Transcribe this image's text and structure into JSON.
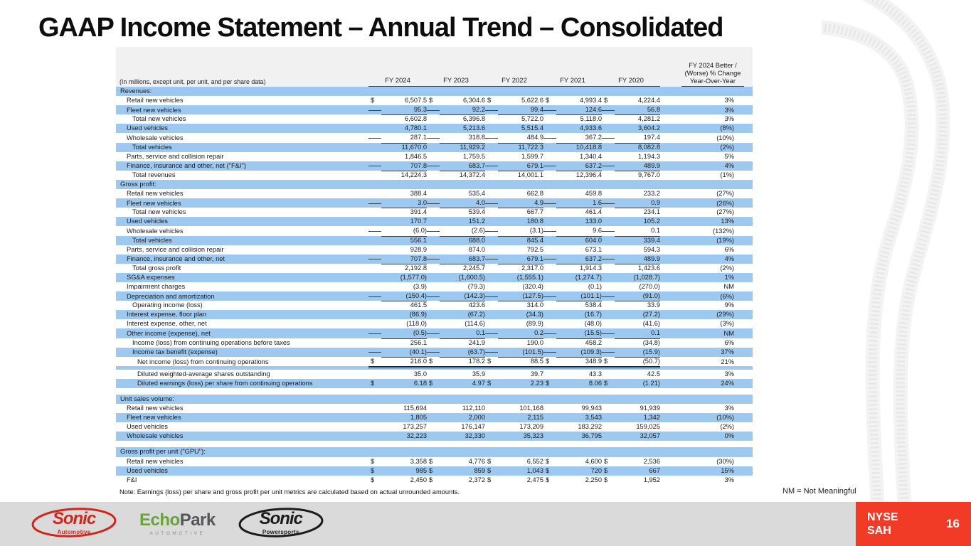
{
  "title": "GAAP Income Statement – Annual Trend – Consolidated",
  "colors": {
    "row_shade_blue": "#9DC9F1",
    "accent_red": "#F23B27",
    "footer_gray": "#DADADA"
  },
  "table": {
    "currency_symbol": "$",
    "measure_note": "(In millions, except unit, per unit, and per share data)",
    "years": [
      "FY 2024",
      "FY 2023",
      "FY 2022",
      "FY 2021",
      "FY 2020"
    ],
    "change_lines": [
      "FY 2024 Better /",
      "(Worse) % Change",
      "Year-Over-Year"
    ],
    "rows": [
      {
        "label": "Revenues:",
        "section": true,
        "shade": true
      },
      {
        "label": "Retail new vehicles",
        "indent": 1,
        "shade": false,
        "dollar": true,
        "values": [
          "6,507.5",
          "6,304.6",
          "5,622.6",
          "4,993.4",
          "4,224.4"
        ],
        "pct": "3%"
      },
      {
        "label": "Fleet new vehicles",
        "indent": 1,
        "shade": true,
        "values": [
          "95.3",
          "92.2",
          "99.4",
          "124.6",
          "56.8"
        ],
        "pct": "3%",
        "rule": "single"
      },
      {
        "label": "Total new vehicles",
        "indent": 2,
        "shade": false,
        "values": [
          "6,602.8",
          "6,396.8",
          "5,722.0",
          "5,118.0",
          "4,281.2"
        ],
        "pct": "3%"
      },
      {
        "label": "Used vehicles",
        "indent": 1,
        "shade": true,
        "values": [
          "4,780.1",
          "5,213.6",
          "5,515.4",
          "4,933.6",
          "3,604.2"
        ],
        "pct": "(8%)"
      },
      {
        "label": "Wholesale vehicles",
        "indent": 1,
        "shade": false,
        "values": [
          "287.1",
          "318.8",
          "484.9",
          "367.2",
          "197.4"
        ],
        "pct": "(10%)",
        "rule": "single"
      },
      {
        "label": "Total vehicles",
        "indent": 2,
        "shade": true,
        "values": [
          "11,670.0",
          "11,929.2",
          "11,722.3",
          "10,418.8",
          "8,082.8"
        ],
        "pct": "(2%)"
      },
      {
        "label": "Parts, service and collision repair",
        "indent": 1,
        "shade": false,
        "values": [
          "1,846.5",
          "1,759.5",
          "1,599.7",
          "1,340.4",
          "1,194.3"
        ],
        "pct": "5%"
      },
      {
        "label": "Finance, insurance and other, net (\"F&I\")",
        "indent": 1,
        "shade": true,
        "values": [
          "707.8",
          "683.7",
          "679.1",
          "637.2",
          "489.9"
        ],
        "pct": "4%",
        "rule": "single"
      },
      {
        "label": "Total revenues",
        "indent": 2,
        "shade": false,
        "values": [
          "14,224.3",
          "14,372.4",
          "14,001.1",
          "12,396.4",
          "9,767.0"
        ],
        "pct": "(1%)"
      },
      {
        "label": "Gross profit:",
        "section": true,
        "shade": true
      },
      {
        "label": "Retail new vehicles",
        "indent": 1,
        "shade": false,
        "values": [
          "388.4",
          "535.4",
          "662.8",
          "459.8",
          "233.2"
        ],
        "pct": "(27%)"
      },
      {
        "label": "Fleet new vehicles",
        "indent": 1,
        "shade": true,
        "values": [
          "3.0",
          "4.0",
          "4.9",
          "1.6",
          "0.9"
        ],
        "pct": "(26%)",
        "rule": "single"
      },
      {
        "label": "Total new vehicles",
        "indent": 2,
        "shade": false,
        "values": [
          "391.4",
          "539.4",
          "667.7",
          "461.4",
          "234.1"
        ],
        "pct": "(27%)"
      },
      {
        "label": "Used vehicles",
        "indent": 1,
        "shade": true,
        "values": [
          "170.7",
          "151.2",
          "180.8",
          "133.0",
          "105.2"
        ],
        "pct": "13%"
      },
      {
        "label": "Wholesale vehicles",
        "indent": 1,
        "shade": false,
        "values": [
          "(6.0)",
          "(2.6)",
          "(3.1)",
          "9.6",
          "0.1"
        ],
        "pct": "(132%)",
        "rule": "single"
      },
      {
        "label": "Total vehicles",
        "indent": 2,
        "shade": true,
        "values": [
          "556.1",
          "688.0",
          "845.4",
          "604.0",
          "339.4"
        ],
        "pct": "(19%)"
      },
      {
        "label": "Parts, service and collision repair",
        "indent": 1,
        "shade": false,
        "values": [
          "928.9",
          "874.0",
          "792.5",
          "673.1",
          "594.3"
        ],
        "pct": "6%"
      },
      {
        "label": "Finance, insurance and other, net",
        "indent": 1,
        "shade": true,
        "values": [
          "707.8",
          "683.7",
          "679.1",
          "637.2",
          "489.9"
        ],
        "pct": "4%",
        "rule": "single"
      },
      {
        "label": "Total gross profit",
        "indent": 2,
        "shade": false,
        "values": [
          "2,192.8",
          "2,245.7",
          "2,317.0",
          "1,914.3",
          "1,423.6"
        ],
        "pct": "(2%)"
      },
      {
        "label": "SG&A expenses",
        "indent": 1,
        "shade": true,
        "values": [
          "(1,577.0)",
          "(1,600.5)",
          "(1,555.1)",
          "(1,274.7)",
          "(1,028.7)"
        ],
        "pct": "1%"
      },
      {
        "label": "Impairment charges",
        "indent": 1,
        "shade": false,
        "values": [
          "(3.9)",
          "(79.3)",
          "(320.4)",
          "(0.1)",
          "(270.0)"
        ],
        "pct": "NM"
      },
      {
        "label": "Depreciation and amortization",
        "indent": 1,
        "shade": true,
        "values": [
          "(150.4)",
          "(142.3)",
          "(127.5)",
          "(101.1)",
          "(91.0)"
        ],
        "pct": "(6%)",
        "rule": "single"
      },
      {
        "label": "Operating income (loss)",
        "indent": 2,
        "shade": false,
        "values": [
          "461.5",
          "423.6",
          "314.0",
          "538.4",
          "33.9"
        ],
        "pct": "9%"
      },
      {
        "label": "Interest expense, floor plan",
        "indent": 1,
        "shade": true,
        "values": [
          "(86.9)",
          "(67.2)",
          "(34.3)",
          "(16.7)",
          "(27.2)"
        ],
        "pct": "(29%)"
      },
      {
        "label": "Interest expense, other, net",
        "indent": 1,
        "shade": false,
        "values": [
          "(118.0)",
          "(114.6)",
          "(89.9)",
          "(48.0)",
          "(41.6)"
        ],
        "pct": "(3%)"
      },
      {
        "label": "Other income (expense), net",
        "indent": 1,
        "shade": true,
        "values": [
          "(0.5)",
          "0.1",
          "0.2",
          "(15.5)",
          "0.1"
        ],
        "pct": "NM",
        "rule": "single"
      },
      {
        "label": "Income (loss) from continuing operations before taxes",
        "indent": 2,
        "shade": false,
        "values": [
          "256.1",
          "241.9",
          "190.0",
          "458.2",
          "(34.8)"
        ],
        "pct": "6%"
      },
      {
        "label": "Income tax benefit (expense)",
        "indent": 2,
        "shade": true,
        "values": [
          "(40.1)",
          "(63.7)",
          "(101.5)",
          "(109.3)",
          "(15.9)"
        ],
        "pct": "37%",
        "rule": "single"
      },
      {
        "label": "Net income (loss) from continuing operations",
        "indent": 3,
        "shade": false,
        "dollar": true,
        "values": [
          "216.0",
          "178.2",
          "88.5",
          "348.9",
          "(50.7)"
        ],
        "pct": "21%",
        "rule": "double"
      },
      {
        "gap": true,
        "h": 5,
        "shade": true
      },
      {
        "label": "Diluted weighted-average shares outstanding",
        "indent": 3,
        "shade": false,
        "values": [
          "35.0",
          "35.9",
          "39.7",
          "43.3",
          "42.5"
        ],
        "pct": "3%"
      },
      {
        "label": "Diluted earnings (loss) per share from continuing operations",
        "indent": 3,
        "shade": true,
        "dollar": true,
        "values": [
          "6.18",
          "4.97",
          "2.23",
          "8.06",
          "(1.21)"
        ],
        "pct": "24%"
      },
      {
        "gap": true,
        "h": 9,
        "shade": false
      },
      {
        "label": "Unit sales volume:",
        "section": true,
        "shade": true
      },
      {
        "label": "Retail new vehicles",
        "indent": 1,
        "shade": false,
        "values": [
          "115,694",
          "112,110",
          "101,168",
          "99,943",
          "91,939"
        ],
        "pct": "3%"
      },
      {
        "label": "Fleet new vehicles",
        "indent": 1,
        "shade": true,
        "values": [
          "1,805",
          "2,000",
          "2,115",
          "3,543",
          "1,342"
        ],
        "pct": "(10%)"
      },
      {
        "label": "Used vehicles",
        "indent": 1,
        "shade": false,
        "values": [
          "173,257",
          "176,147",
          "173,209",
          "183,292",
          "159,025"
        ],
        "pct": "(2%)"
      },
      {
        "label": "Wholesale vehicles",
        "indent": 1,
        "shade": true,
        "values": [
          "32,223",
          "32,330",
          "35,323",
          "36,795",
          "32,057"
        ],
        "pct": "0%"
      },
      {
        "gap": true,
        "h": 9,
        "shade": false
      },
      {
        "label": "Gross profit per unit (\"GPU\"):",
        "section": true,
        "shade": true
      },
      {
        "label": "Retail new vehicles",
        "indent": 1,
        "shade": false,
        "dollar": true,
        "values": [
          "3,358",
          "4,776",
          "6,552",
          "4,600",
          "2,536"
        ],
        "pct": "(30%)"
      },
      {
        "label": "Used vehicles",
        "indent": 1,
        "shade": true,
        "dollar": true,
        "values": [
          "985",
          "859",
          "1,043",
          "720",
          "667"
        ],
        "pct": "15%"
      },
      {
        "label": "F&I",
        "indent": 1,
        "shade": false,
        "dollar": true,
        "values": [
          "2,450",
          "2,372",
          "2,475",
          "2,250",
          "1,952"
        ],
        "pct": "3%"
      }
    ]
  },
  "notes": {
    "table_note": "Note: Earnings (loss) per share and gross profit per unit metrics are calculated based on actual unrounded amounts.",
    "nm_note": "NM = Not Meaningful"
  },
  "footer": {
    "logos": {
      "sonic_automotive": {
        "main": "Sonic",
        "sub": "Automotive"
      },
      "echopark": {
        "main_green": "Echo",
        "main_gray": "Park",
        "sub": "AUTOMOTIVE"
      },
      "sonic_powersports": {
        "main": "Sonic",
        "sub": "Powersports"
      }
    },
    "ticker_line1": "NYSE",
    "ticker_line2": "SAH",
    "page_number": "16"
  }
}
